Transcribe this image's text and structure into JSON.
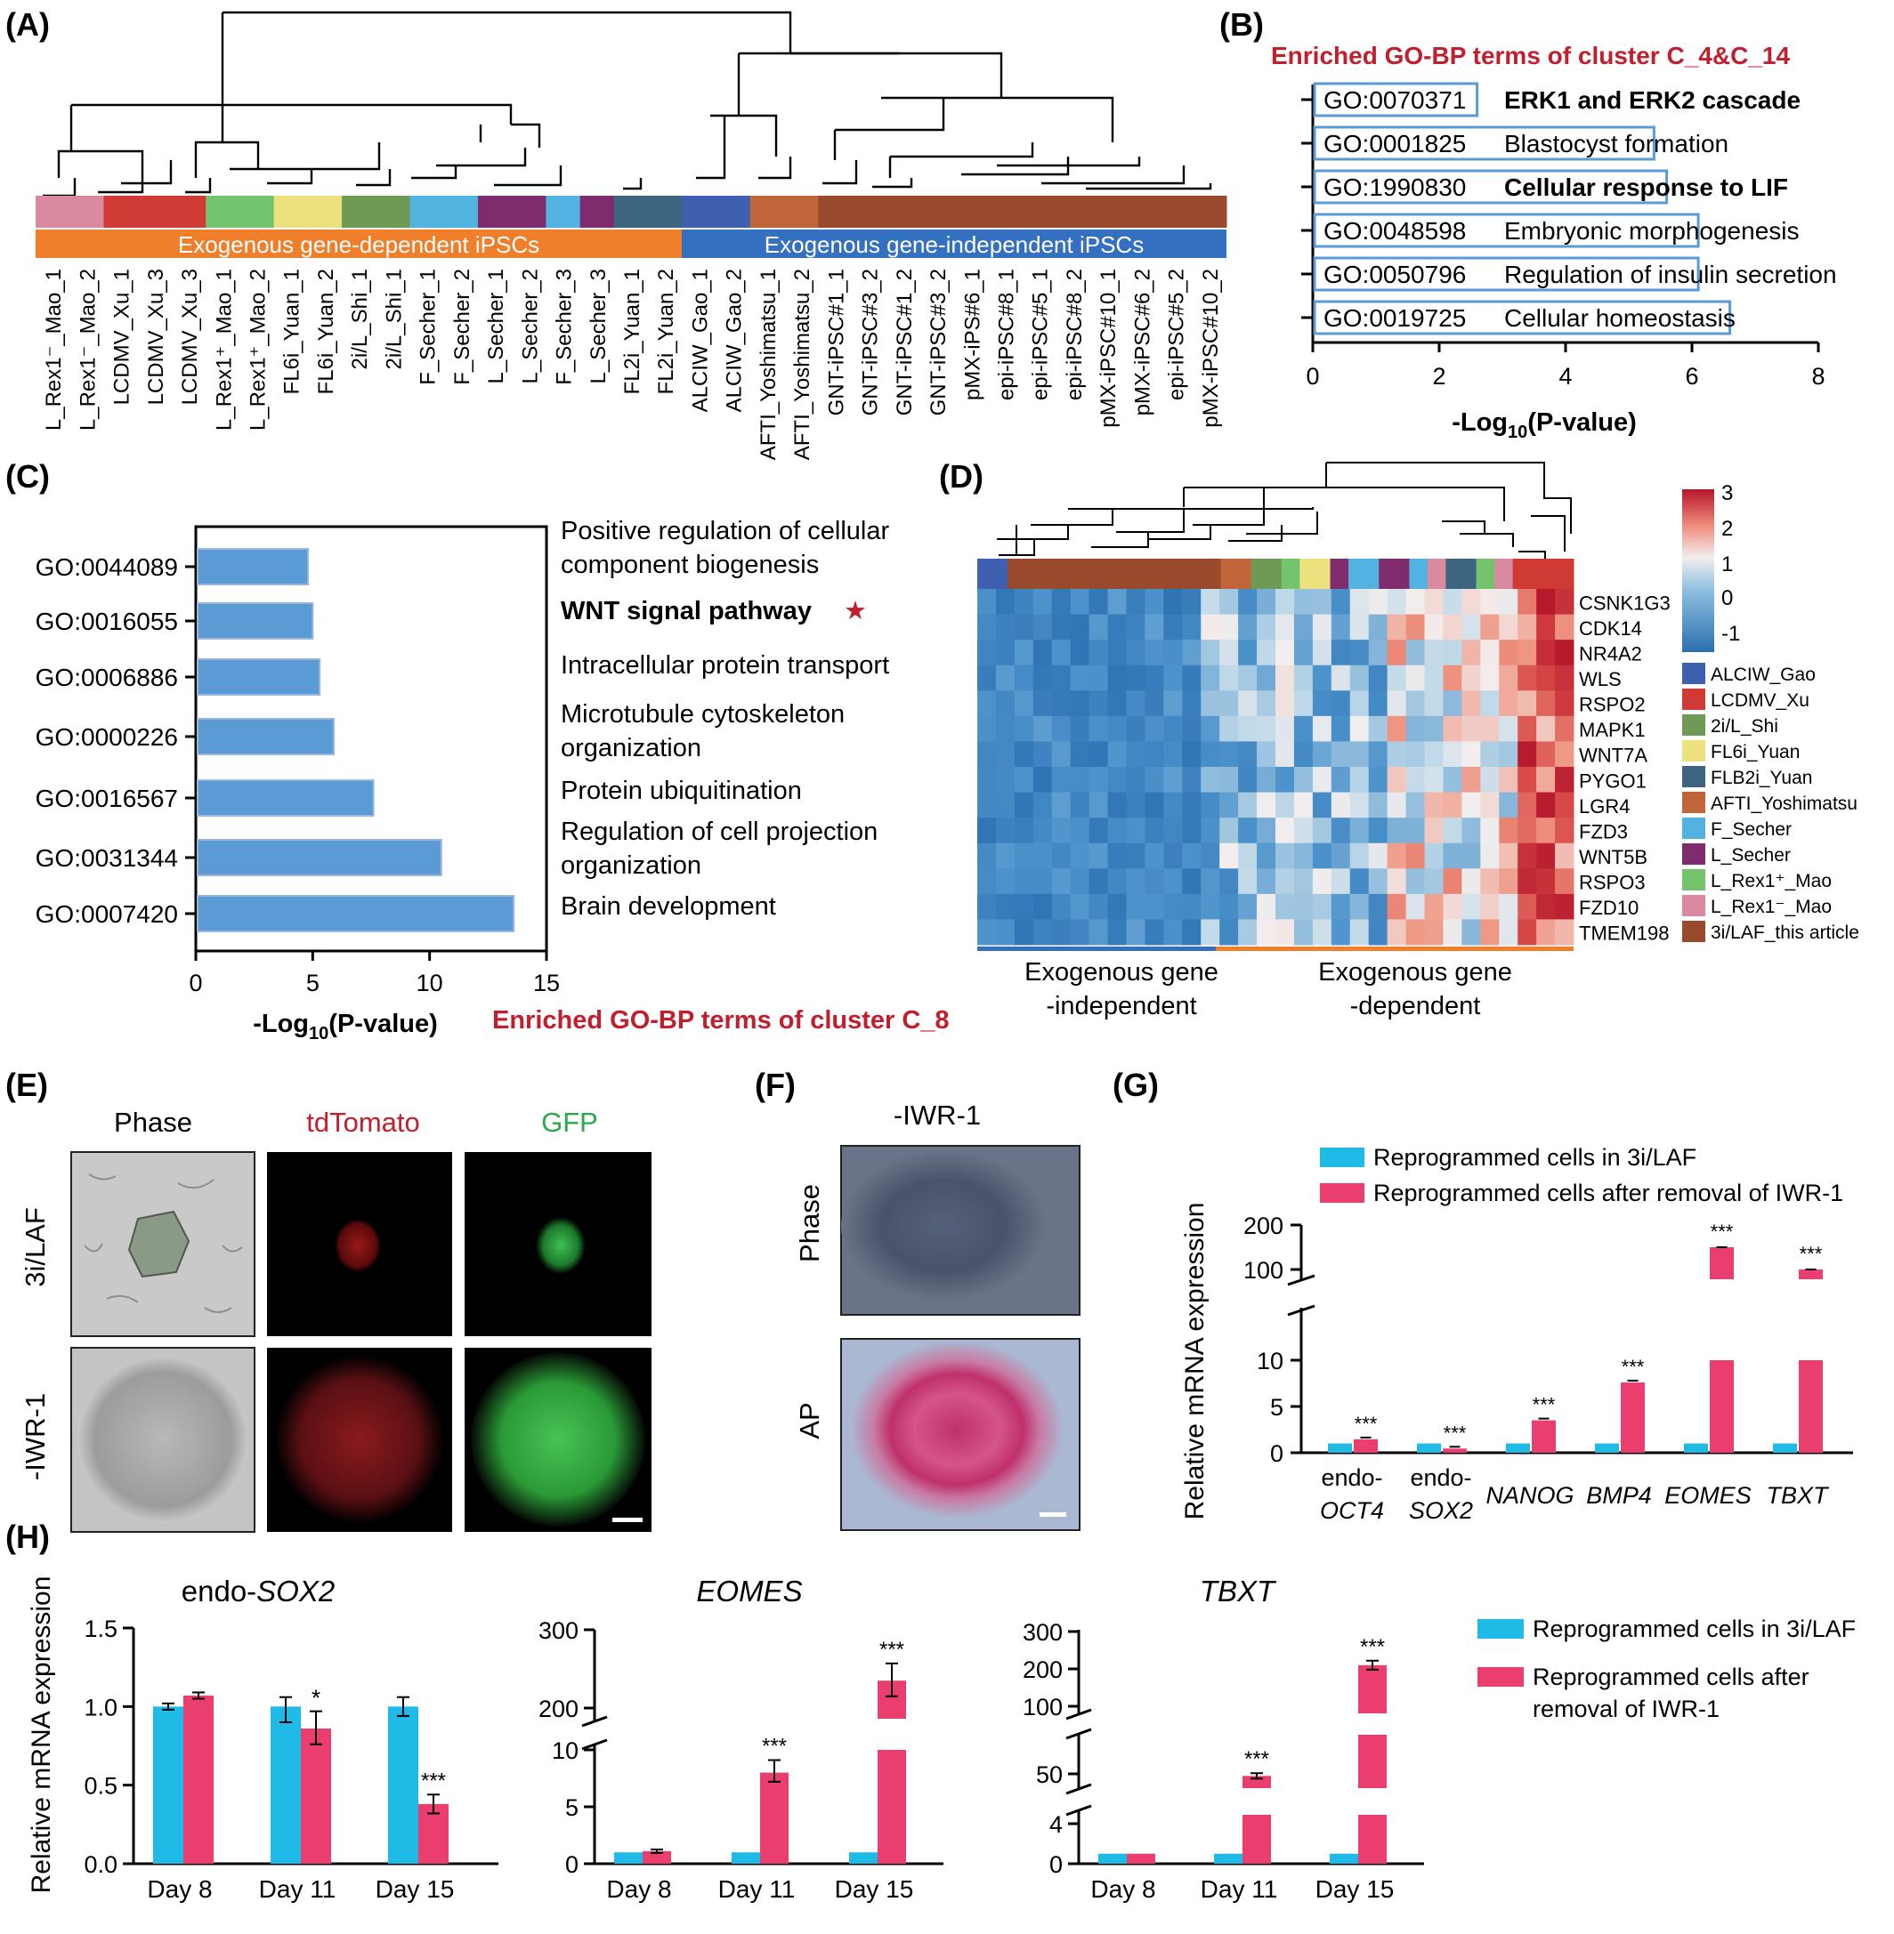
{
  "panels": {
    "A": "(A)",
    "B": "(B)",
    "C": "(C)",
    "D": "(D)",
    "E": "(E)",
    "F": "(F)",
    "G": "(G)",
    "H": "(H)"
  },
  "colors": {
    "cyan": "#1fbbe6",
    "pink": "#e93e6e",
    "blueBar": "#5b9bd5",
    "red": "#c0202e",
    "orange": "#f07f2c",
    "blue": "#3470c0"
  },
  "panelA": {
    "group_dependent": "Exogenous gene-dependent iPSCs",
    "group_independent": "Exogenous gene-independent iPSCs",
    "samples": [
      "L_Rex1⁻_Mao_1",
      "L_Rex1⁻_Mao_2",
      "LCDMV_Xu_1",
      "LCDMV_Xu_3",
      "LCDMV_Xu_3",
      "L_Rex1⁺_Mao_1",
      "L_Rex1⁺_Mao_2",
      "FL6i_Yuan_1",
      "FL6i_Yuan_2",
      "2i/L_Shi_1",
      "2i/L_Shi_1",
      "F_Secher_1",
      "F_Secher_2",
      "L_Secher_1",
      "L_Secher_2",
      "F_Secher_3",
      "L_Secher_3",
      "FL2i_Yuan_1",
      "FL2i_Yuan_2",
      "ALCIW_Gao_1",
      "ALCIW_Gao_2",
      "AFTI_Yoshimatsu_1",
      "AFTI_Yoshimatsu_2",
      "GNT-iPSC#1_1",
      "GNT-iPSC#3_2",
      "GNT-iPSC#1_2",
      "GNT-iPSC#3_2",
      "pMX-iPS#6_1",
      "epi-iPSC#8_1",
      "epi-iPSC#5_1",
      "epi-iPSC#8_2",
      "pMX-iPSC#10_1",
      "pMX-iPSC#6_2",
      "epi-iPSC#5_2",
      "pMX-iPSC#10_2"
    ],
    "color_blocks": [
      {
        "color": "#d98aa0",
        "n": 2
      },
      {
        "color": "#cf3a34",
        "n": 3
      },
      {
        "color": "#74c46e",
        "n": 2
      },
      {
        "color": "#ece07f",
        "n": 2
      },
      {
        "color": "#6f9a55",
        "n": 2
      },
      {
        "color": "#52b2e0",
        "n": 2
      },
      {
        "color": "#7f2c6e",
        "n": 2
      },
      {
        "color": "#52b2e0",
        "n": 1
      },
      {
        "color": "#7f2c6e",
        "n": 1
      },
      {
        "color": "#3e6580",
        "n": 2
      },
      {
        "color": "#3f5fb0",
        "n": 2
      },
      {
        "color": "#c0643a",
        "n": 2
      },
      {
        "color": "#9a4a2c",
        "n": 12
      }
    ]
  },
  "panelB": {
    "title": "Enriched GO-BP terms of cluster C_4&C_14",
    "xlabel": "-Log",
    "xlabel_sub": "10",
    "xlabel_end": "(P-value)",
    "ticks": [
      "0",
      "2",
      "4",
      "6",
      "8"
    ]
  },
  "panelC": {
    "xlabel": "-Log",
    "xlabel_sub": "10",
    "xlabel_end": "(P-value)",
    "title": "Enriched GO-BP terms of cluster C_8",
    "ticks": [
      "0",
      "5",
      "10",
      "15"
    ],
    "star": "★"
  },
  "panelD": {
    "genes": [
      "CSNK1G3",
      "CDK14",
      "NR4A2",
      "WLS",
      "RSPO2",
      "MAPK1",
      "WNT7A",
      "PYGO1",
      "LGR4",
      "FZD3",
      "WNT5B",
      "RSPO3",
      "FZD10",
      "TMEM198"
    ],
    "scale": [
      "3",
      "2",
      "1",
      "0",
      "-1"
    ],
    "legend": [
      {
        "label": "ALCIW_Gao",
        "color": "#3f5fb0"
      },
      {
        "label": "LCDMV_Xu",
        "color": "#cf3a34"
      },
      {
        "label": "2i/L_Shi",
        "color": "#6f9a55"
      },
      {
        "label": "FL6i_Yuan",
        "color": "#ece07f"
      },
      {
        "label": "FLB2i_Yuan",
        "color": "#3e6580"
      },
      {
        "label": "AFTI_Yoshimatsu",
        "color": "#c0643a"
      },
      {
        "label": "F_Secher",
        "color": "#52b2e0"
      },
      {
        "label": "L_Secher",
        "color": "#7f2c6e"
      },
      {
        "label": "L_Rex1⁺_Mao",
        "color": "#74c46e"
      },
      {
        "label": "L_Rex1⁻_Mao",
        "color": "#d98aa0"
      },
      {
        "label": "3i/LAF_this article",
        "color": "#9a4a2c"
      }
    ],
    "group_left_1": "Exogenous gene",
    "group_left_2": "-independent",
    "group_right_1": "Exogenous gene",
    "group_right_2": "-dependent"
  },
  "panelE": {
    "col1": "Phase",
    "col2": "tdTomato",
    "col3": "GFP",
    "row1": "3i/LAF",
    "row2": "-IWR-1"
  },
  "panelF": {
    "title": "-IWR-1",
    "row1": "Phase",
    "row2": "AP"
  },
  "panelG": {
    "legend1": "Reprogrammed cells in 3i/LAF",
    "legend2": "Reprogrammed cells after removal of IWR-1",
    "ylabel": "Relative mRNA expression",
    "ticks_top": [
      "200",
      "100"
    ],
    "ticks_bottom": [
      "10",
      "5",
      "0"
    ],
    "sig": "***",
    "genes": [
      {
        "l1": "endo-",
        "l2": "OCT4"
      },
      {
        "l1": "endo-",
        "l2": "SOX2"
      },
      {
        "l1": "",
        "l2": "NANOG"
      },
      {
        "l1": "",
        "l2": "BMP4"
      },
      {
        "l1": "",
        "l2": "EOMES"
      },
      {
        "l1": "",
        "l2": "TBXT"
      }
    ]
  },
  "panelH": {
    "ylabel": "Relative mRNA expression",
    "days": [
      "Day 8",
      "Day 11",
      "Day 15"
    ],
    "legend1": "Reprogrammed cells in 3i/LAF",
    "legend2a": "Reprogrammed cells after",
    "legend2b": "removal of IWR-1",
    "t1_pre": "endo-",
    "t1_it": "SOX2",
    "t2": "EOMES",
    "t3": "TBXT",
    "ticks1": [
      "1.5",
      "1.0",
      "0.5",
      "0.0"
    ],
    "ticks2_top": [
      "300",
      "200"
    ],
    "ticks2_bottom": [
      "10",
      "5",
      "0"
    ],
    "ticks3_top": [
      "300",
      "200",
      "100"
    ],
    "ticks3_mid": [
      "50"
    ],
    "ticks3_bottom": [
      "4",
      "0"
    ],
    "s1": "*",
    "s3": "***"
  },
  "chart_data": [
    {
      "type": "bar",
      "orientation": "horizontal",
      "panel": "B",
      "title": "Enriched GO-BP terms of cluster C_4&C_14",
      "xlabel": "-Log10(P-value)",
      "xlim": [
        0,
        8
      ],
      "categories": [
        "GO:0070371",
        "GO:0001825",
        "GO:1990830",
        "GO:0048598",
        "GO:0050796",
        "GO:0019725"
      ],
      "labels": [
        "ERK1 and ERK2 cascade",
        "Blastocyst formation",
        "Cellular response to LIF",
        "Embryonic morphogenesis",
        "Regulation of insulin secretion",
        "Cellular homeostasis"
      ],
      "bold": [
        true,
        false,
        true,
        false,
        false,
        false
      ],
      "values": [
        2.6,
        5.4,
        5.6,
        6.1,
        6.1,
        6.6
      ]
    },
    {
      "type": "bar",
      "orientation": "horizontal",
      "panel": "C",
      "title": "Enriched GO-BP terms of cluster C_8",
      "xlabel": "-Log10(P-value)",
      "xlim": [
        0,
        15
      ],
      "categories": [
        "GO:0044089",
        "GO:0016055",
        "GO:0006886",
        "GO:0000226",
        "GO:0016567",
        "GO:0031344",
        "GO:0007420"
      ],
      "labels": [
        [
          "Positive regulation of cellular",
          "component biogenesis"
        ],
        [
          "WNT signal pathway"
        ],
        [
          "Intracellular protein transport"
        ],
        [
          "Microtubule cytoskeleton",
          "organization"
        ],
        [
          "Protein ubiquitination"
        ],
        [
          "Regulation of cell projection",
          "organization"
        ],
        [
          "Brain development"
        ]
      ],
      "bold": [
        false,
        true,
        false,
        false,
        false,
        false,
        false
      ],
      "values": [
        4.8,
        5.0,
        5.3,
        5.9,
        7.6,
        10.5,
        13.6
      ]
    },
    {
      "type": "bar",
      "panel": "G",
      "ylabel": "Relative mRNA expression",
      "categories": [
        "endo-OCT4",
        "endo-SOX2",
        "NANOG",
        "BMP4",
        "EOMES",
        "TBXT"
      ],
      "series": [
        {
          "name": "Reprogrammed cells in 3i/LAF",
          "values": [
            1,
            1,
            1,
            1,
            1,
            1
          ]
        },
        {
          "name": "Reprogrammed cells after removal of IWR-1",
          "values": [
            1.45,
            0.45,
            3.5,
            7.6,
            150,
            75
          ]
        }
      ]
    },
    {
      "type": "bar",
      "panel": "H",
      "title": "endo-SOX2",
      "ylabel": "Relative mRNA expression",
      "ylim": [
        0,
        1.5
      ],
      "categories": [
        "Day 8",
        "Day 11",
        "Day 15"
      ],
      "series": [
        {
          "name": "Reprogrammed cells in 3i/LAF",
          "values": [
            1.0,
            1.0,
            1.0
          ]
        },
        {
          "name": "Reprogrammed cells after removal of IWR-1",
          "values": [
            1.07,
            0.86,
            0.38
          ]
        }
      ]
    },
    {
      "type": "bar",
      "panel": "H",
      "title": "EOMES",
      "categories": [
        "Day 8",
        "Day 11",
        "Day 15"
      ],
      "series": [
        {
          "name": "Reprogrammed cells in 3i/LAF",
          "values": [
            1.0,
            1.0,
            1.0
          ]
        },
        {
          "name": "Reprogrammed cells after removal of IWR-1",
          "values": [
            1.1,
            8.0,
            235
          ]
        }
      ]
    },
    {
      "type": "bar",
      "panel": "H",
      "title": "TBXT",
      "categories": [
        "Day 8",
        "Day 11",
        "Day 15"
      ],
      "series": [
        {
          "name": "Reprogrammed cells in 3i/LAF",
          "values": [
            1.0,
            1.0,
            1.0
          ]
        },
        {
          "name": "Reprogrammed cells after removal of IWR-1",
          "values": [
            1.0,
            47,
            210
          ]
        }
      ]
    }
  ]
}
